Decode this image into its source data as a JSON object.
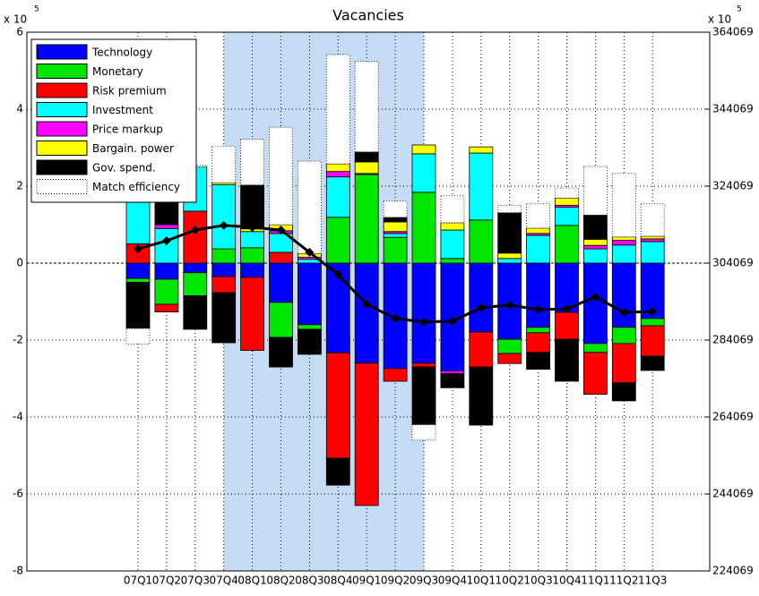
{
  "chart_data": {
    "type": "stacked_bar_line",
    "title": "Vacancies",
    "y_scale_base": "x 10",
    "y_scale_exponent": "5",
    "categories": [
      "07Q1",
      "07Q2",
      "07Q3",
      "07Q4",
      "08Q1",
      "08Q2",
      "08Q3",
      "08Q4",
      "09Q1",
      "09Q2",
      "09Q3",
      "09Q4",
      "10Q1",
      "10Q2",
      "10Q3",
      "10Q4",
      "11Q1",
      "11Q2",
      "11Q3"
    ],
    "shaded": {
      "from": "07Q4",
      "to": "09Q3",
      "color": "#c6dcf5"
    },
    "ylim": [
      -8,
      6
    ],
    "yticks": [
      -8,
      -6,
      -4,
      -2,
      0,
      2,
      4,
      6
    ],
    "y2lim": [
      224069,
      364069
    ],
    "y2ticks": [
      224069,
      244069,
      264069,
      284069,
      304069,
      324069,
      344069,
      364069
    ],
    "grid": true,
    "legend": "upper left",
    "series": [
      {
        "name": "Technology",
        "color": "#0000ff",
        "values": [
          -0.4,
          -0.42,
          -0.25,
          -0.35,
          -0.37,
          -1.02,
          -1.6,
          -2.33,
          -2.6,
          -2.74,
          -2.6,
          -2.8,
          -1.79,
          -1.98,
          -1.67,
          -1.28,
          -2.09,
          -1.67,
          -1.44
        ]
      },
      {
        "name": "Monetary",
        "color": "#00e600",
        "values": [
          -0.1,
          -0.65,
          -0.6,
          0.37,
          0.4,
          -0.91,
          -0.12,
          1.19,
          2.3,
          0.67,
          1.84,
          0.12,
          1.12,
          -0.37,
          -0.14,
          0.98,
          -0.23,
          -0.42,
          -0.19
        ]
      },
      {
        "name": "Risk premium",
        "color": "#ff0000",
        "values": [
          0.5,
          -0.2,
          1.35,
          -0.42,
          -1.9,
          0.28,
          0,
          -2.74,
          -3.7,
          -0.33,
          -0.1,
          0,
          -0.91,
          -0.26,
          -0.51,
          -0.7,
          -1.09,
          -1.02,
          -0.79
        ]
      },
      {
        "name": "Investment",
        "color": "#00ffff",
        "values": [
          1.4,
          0.9,
          1.15,
          1.67,
          0.42,
          0.49,
          0.1,
          1.05,
          0,
          0.1,
          1.0,
          0.74,
          1.74,
          0.12,
          0.72,
          0.47,
          0.37,
          0.47,
          0.56
        ]
      },
      {
        "name": "Price markup",
        "color": "#ff00ff",
        "values": [
          0,
          0.1,
          0,
          0,
          0,
          0.07,
          0.05,
          0.14,
          0.03,
          0.05,
          0,
          -0.07,
          0,
          0,
          0.05,
          0.05,
          0.09,
          0.12,
          0.07
        ]
      },
      {
        "name": "Bargain. power",
        "color": "#ffff00",
        "values": [
          0,
          0,
          0,
          0.05,
          0.07,
          0.16,
          0.1,
          0.2,
          0.3,
          0.25,
          0.23,
          0.19,
          0.16,
          0.14,
          0.14,
          0.19,
          0.16,
          0.09,
          0.07
        ]
      },
      {
        "name": "Gov. spend.",
        "color": "#000000",
        "values": [
          -1.2,
          0.6,
          -0.87,
          -1.3,
          1.14,
          -0.77,
          -0.65,
          -0.7,
          0.26,
          0.12,
          -1.5,
          -0.37,
          -1.51,
          1.05,
          -0.44,
          -1.09,
          0.63,
          -0.47,
          -0.37
        ]
      },
      {
        "name": "Match efficiency",
        "color": "#ffffff",
        "dotted": true,
        "values": [
          -0.4,
          0,
          0.05,
          0.95,
          1.19,
          2.53,
          2.4,
          2.84,
          2.35,
          0.42,
          -0.4,
          0.7,
          0,
          0.19,
          0.63,
          0.26,
          1.26,
          1.65,
          0.84
        ]
      }
    ],
    "line": {
      "axis": "y2",
      "color": "#000000",
      "values": [
        307769,
        309869,
        312669,
        313869,
        313369,
        312669,
        306869,
        301069,
        293369,
        289669,
        288769,
        288969,
        292469,
        293169,
        291969,
        292169,
        295269,
        291269,
        291469
      ]
    }
  }
}
